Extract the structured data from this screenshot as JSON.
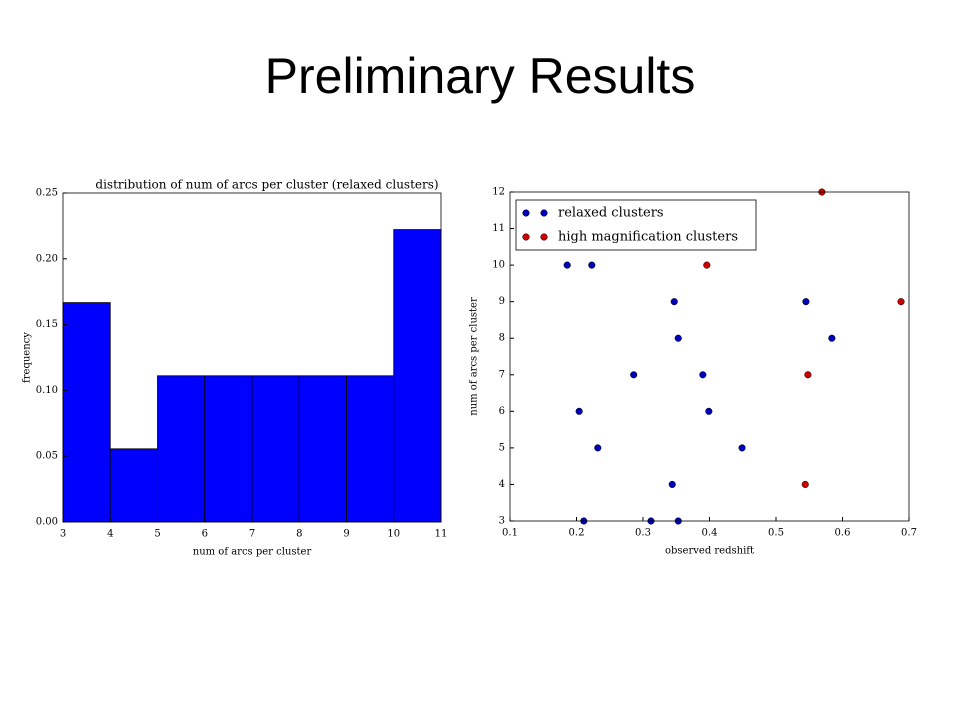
{
  "title": "Preliminary Results",
  "chart_data": [
    {
      "type": "histogram",
      "title": "distribution of num of arcs per cluster (relaxed clusters)",
      "xlabel": "num of arcs per cluster",
      "ylabel": "frequency",
      "color": "#0000ff",
      "bins": [
        3,
        4,
        5,
        6,
        7,
        8,
        9,
        10,
        11
      ],
      "values": [
        0.1667,
        0.0556,
        0.1111,
        0.1111,
        0.1111,
        0.1111,
        0.1111,
        0.2222
      ],
      "xlim": [
        3,
        11
      ],
      "ylim": [
        0,
        0.25
      ],
      "xticks": [
        3,
        4,
        5,
        6,
        7,
        8,
        9,
        10,
        11
      ],
      "yticks": [
        {
          "value": 0,
          "label": "0.00"
        },
        {
          "value": 0.05,
          "label": "0.05"
        },
        {
          "value": 0.1,
          "label": "0.10"
        },
        {
          "value": 0.15,
          "label": "0.15"
        },
        {
          "value": 0.2,
          "label": "0.20"
        },
        {
          "value": 0.25,
          "label": "0.25"
        }
      ]
    },
    {
      "type": "scatter",
      "xlabel": "observed redshift",
      "ylabel": "num of arcs per cluster",
      "legend": "upper left",
      "xlim": [
        0.1,
        0.7
      ],
      "ylim": [
        3,
        12
      ],
      "xticks": [
        0.1,
        0.2,
        0.3,
        0.4,
        0.5,
        0.6,
        0.7
      ],
      "yticks": [
        3,
        4,
        5,
        6,
        7,
        8,
        9,
        10,
        11,
        12
      ],
      "series": [
        {
          "name": "relaxed clusters",
          "color": "#0000bb",
          "x": [
            0.186,
            0.223,
            0.347,
            0.545,
            0.353,
            0.584,
            0.286,
            0.39,
            0.204,
            0.399,
            0.232,
            0.449,
            0.344,
            0.211,
            0.312,
            0.353
          ],
          "values": [
            10,
            10,
            9,
            9,
            8,
            8,
            7,
            7,
            6,
            6,
            5,
            5,
            4,
            3,
            3,
            3
          ]
        },
        {
          "name": "high magnification clusters",
          "color": "#cc0000",
          "x": [
            0.396,
            0.569,
            0.688,
            0.548,
            0.544
          ],
          "values": [
            10,
            12,
            9,
            7,
            4
          ]
        }
      ]
    }
  ]
}
